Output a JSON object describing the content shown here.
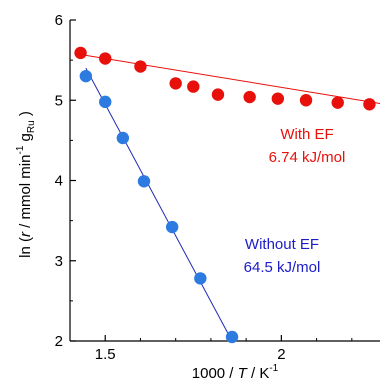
{
  "chart_data": {
    "type": "scatter",
    "xlabel_parts": [
      "1000 / ",
      "T",
      " / K",
      "-1"
    ],
    "ylabel_parts": [
      "ln (",
      "r",
      " / mmol min",
      "-1",
      " g",
      "Ru",
      " )"
    ],
    "xlim": [
      1.4,
      2.28
    ],
    "ylim": [
      2,
      6
    ],
    "xticks": [
      1.5,
      2
    ],
    "xtick_labels": [
      "1.5",
      "2"
    ],
    "yticks": [
      2,
      3,
      4,
      5,
      6
    ],
    "ytick_labels": [
      "2",
      "3",
      "4",
      "5",
      "6"
    ],
    "grid": false,
    "series": [
      {
        "key": "with_ef",
        "color": "#e8100b",
        "label_lines": [
          "With EF",
          "6.74 kJ/mol"
        ],
        "points": [
          [
            1.43,
            5.59
          ],
          [
            1.5,
            5.52
          ],
          [
            1.6,
            5.42
          ],
          [
            1.7,
            5.21
          ],
          [
            1.75,
            5.17
          ],
          [
            1.82,
            5.07
          ],
          [
            1.91,
            5.04
          ],
          [
            1.99,
            5.02
          ],
          [
            2.07,
            5.0
          ],
          [
            2.16,
            4.97
          ],
          [
            2.25,
            4.95
          ]
        ],
        "fit": [
          [
            1.43,
            5.57
          ],
          [
            2.28,
            4.96
          ]
        ]
      },
      {
        "key": "without_ef",
        "color": "#2d7ae0",
        "line_color": "#1f2ab8",
        "label_color": "#1c1cc8",
        "label_lines": [
          "Without EF",
          "64.5 kJ/mol"
        ],
        "points": [
          [
            1.445,
            5.3
          ],
          [
            1.5,
            4.98
          ],
          [
            1.55,
            4.53
          ],
          [
            1.61,
            3.99
          ],
          [
            1.69,
            3.42
          ],
          [
            1.77,
            2.78
          ],
          [
            1.86,
            2.05
          ]
        ],
        "fit": [
          [
            1.445,
            5.4
          ],
          [
            1.86,
            2.0
          ]
        ]
      }
    ]
  }
}
